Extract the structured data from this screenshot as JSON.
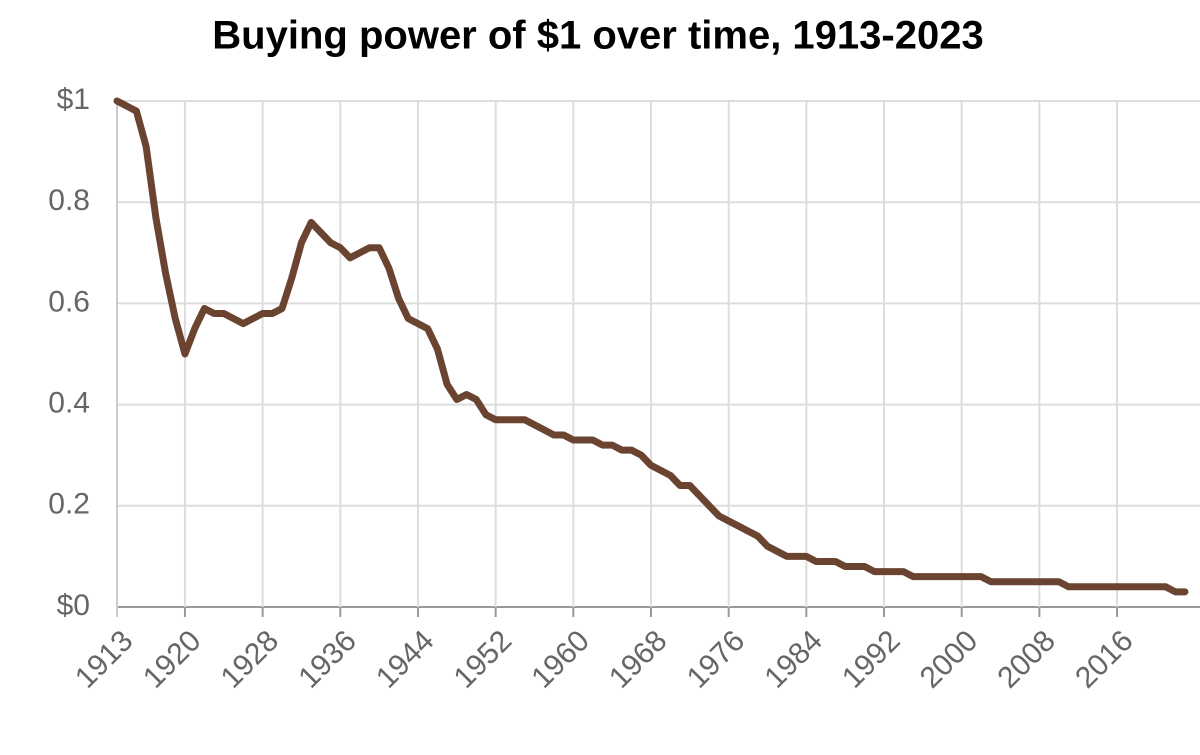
{
  "chart_data": {
    "type": "line",
    "title": "Buying power of $1 over time, 1913-2023",
    "x": [
      1913,
      1914,
      1915,
      1916,
      1917,
      1918,
      1919,
      1920,
      1921,
      1922,
      1923,
      1924,
      1925,
      1926,
      1927,
      1928,
      1929,
      1930,
      1931,
      1932,
      1933,
      1934,
      1935,
      1936,
      1937,
      1938,
      1939,
      1940,
      1941,
      1942,
      1943,
      1944,
      1945,
      1946,
      1947,
      1948,
      1949,
      1950,
      1951,
      1952,
      1953,
      1954,
      1955,
      1956,
      1957,
      1958,
      1959,
      1960,
      1961,
      1962,
      1963,
      1964,
      1965,
      1966,
      1967,
      1968,
      1969,
      1970,
      1971,
      1972,
      1973,
      1974,
      1975,
      1976,
      1977,
      1978,
      1979,
      1980,
      1981,
      1982,
      1983,
      1984,
      1985,
      1986,
      1987,
      1988,
      1989,
      1990,
      1991,
      1992,
      1993,
      1994,
      1995,
      1996,
      1997,
      1998,
      1999,
      2000,
      2001,
      2002,
      2003,
      2004,
      2005,
      2006,
      2007,
      2008,
      2009,
      2010,
      2011,
      2012,
      2013,
      2014,
      2015,
      2016,
      2017,
      2018,
      2019,
      2020,
      2021,
      2022,
      2023
    ],
    "values": [
      1,
      0.99,
      0.98,
      0.91,
      0.77,
      0.66,
      0.57,
      0.5,
      0.55,
      0.59,
      0.58,
      0.58,
      0.57,
      0.56,
      0.57,
      0.58,
      0.58,
      0.59,
      0.65,
      0.72,
      0.76,
      0.74,
      0.72,
      0.71,
      0.69,
      0.7,
      0.71,
      0.71,
      0.67,
      0.61,
      0.57,
      0.56,
      0.55,
      0.51,
      0.44,
      0.41,
      0.42,
      0.41,
      0.38,
      0.37,
      0.37,
      0.37,
      0.37,
      0.36,
      0.35,
      0.34,
      0.34,
      0.33,
      0.33,
      0.33,
      0.32,
      0.32,
      0.31,
      0.31,
      0.3,
      0.28,
      0.27,
      0.26,
      0.24,
      0.24,
      0.22,
      0.2,
      0.18,
      0.17,
      0.16,
      0.15,
      0.14,
      0.12,
      0.11,
      0.1,
      0.1,
      0.1,
      0.09,
      0.09,
      0.09,
      0.08,
      0.08,
      0.08,
      0.07,
      0.07,
      0.07,
      0.07,
      0.06,
      0.06,
      0.06,
      0.06,
      0.06,
      0.06,
      0.06,
      0.06,
      0.05,
      0.05,
      0.05,
      0.05,
      0.05,
      0.05,
      0.05,
      0.05,
      0.04,
      0.04,
      0.04,
      0.04,
      0.04,
      0.04,
      0.04,
      0.04,
      0.04,
      0.04,
      0.04,
      0.03,
      0.03
    ],
    "color": "#6b4431",
    "xlim": [
      1913,
      2023
    ],
    "xticks": [
      1913,
      1920,
      1928,
      1936,
      1944,
      1952,
      1960,
      1968,
      1976,
      1984,
      1992,
      2000,
      2008,
      2016
    ],
    "ylim": [
      0,
      1
    ],
    "yticks": [
      {
        "value": 0,
        "label": "$0"
      },
      0.2,
      0.4,
      0.6,
      0.8,
      {
        "value": 1,
        "label": "$1"
      }
    ],
    "grid": true
  }
}
